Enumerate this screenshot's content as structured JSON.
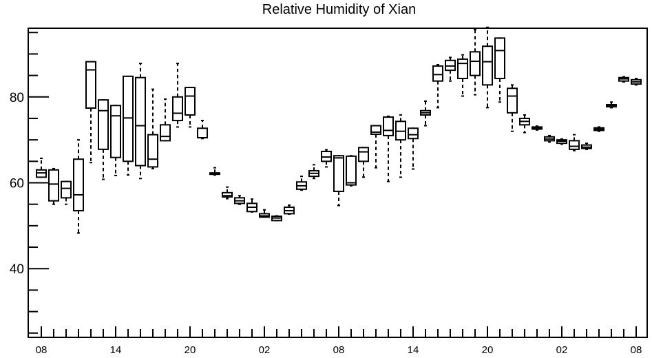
{
  "chart_data": {
    "type": "box",
    "title": "Relative Humidity of Xian",
    "xlabel": "",
    "ylabel": "",
    "ylim": [
      24,
      96
    ],
    "grid": false,
    "legend": "none",
    "y_ticks": [
      40,
      60,
      80
    ],
    "x_ticks": [
      {
        "label": "08",
        "hour": 0
      },
      {
        "label": "14",
        "hour": 6
      },
      {
        "label": "20",
        "hour": 12
      },
      {
        "label": "02",
        "hour": 18
      },
      {
        "label": "08",
        "hour": 24
      },
      {
        "label": "14",
        "hour": 30
      },
      {
        "label": "20",
        "hour": 36
      },
      {
        "label": "02",
        "hour": 42
      },
      {
        "label": "08",
        "hour": 48
      }
    ],
    "colors": {
      "stroke": "#000000",
      "background": "#ffffff"
    },
    "series": [
      {
        "hour": 0,
        "min": 61.3,
        "q1": 61.3,
        "median": 62.3,
        "q3": 63.0,
        "max": 65.7
      },
      {
        "hour": 1,
        "min": 55.0,
        "q1": 55.8,
        "median": 59.7,
        "q3": 63.0,
        "max": 63.3
      },
      {
        "hour": 2,
        "min": 55.0,
        "q1": 56.5,
        "median": 58.7,
        "q3": 60.3,
        "max": 60.3
      },
      {
        "hour": 3,
        "min": 48.3,
        "q1": 53.5,
        "median": 57.2,
        "q3": 65.5,
        "max": 70.0
      },
      {
        "hour": 4,
        "min": 64.7,
        "q1": 77.4,
        "median": 86.3,
        "q3": 88.2,
        "max": 88.2
      },
      {
        "hour": 5,
        "min": 60.8,
        "q1": 67.8,
        "median": 76.8,
        "q3": 79.3,
        "max": 79.3
      },
      {
        "hour": 6,
        "min": 61.7,
        "q1": 65.9,
        "median": 75.6,
        "q3": 78.0,
        "max": 78.0
      },
      {
        "hour": 7,
        "min": 61.8,
        "q1": 65.0,
        "median": 75.1,
        "q3": 84.8,
        "max": 84.8
      },
      {
        "hour": 8,
        "min": 61.0,
        "q1": 64.0,
        "median": 73.3,
        "q3": 84.5,
        "max": 87.8
      },
      {
        "hour": 9,
        "min": 63.3,
        "q1": 63.7,
        "median": 65.5,
        "q3": 71.2,
        "max": 81.8
      },
      {
        "hour": 10,
        "min": 69.8,
        "q1": 69.8,
        "median": 70.8,
        "q3": 73.5,
        "max": 79.5
      },
      {
        "hour": 11,
        "min": 73.0,
        "q1": 74.5,
        "median": 76.2,
        "q3": 80.0,
        "max": 87.8
      },
      {
        "hour": 12,
        "min": 73.0,
        "q1": 75.8,
        "median": 80.2,
        "q3": 82.2,
        "max": 82.2
      },
      {
        "hour": 13,
        "min": 70.3,
        "q1": 70.5,
        "median": 70.5,
        "q3": 72.7,
        "max": 74.5
      },
      {
        "hour": 14,
        "min": 61.8,
        "q1": 62.0,
        "median": 62.2,
        "q3": 62.3,
        "max": 63.5
      },
      {
        "hour": 15,
        "min": 56.3,
        "q1": 56.7,
        "median": 57.0,
        "q3": 57.7,
        "max": 59.0
      },
      {
        "hour": 16,
        "min": 55.0,
        "q1": 55.2,
        "median": 55.8,
        "q3": 56.5,
        "max": 57.0
      },
      {
        "hour": 17,
        "min": 53.2,
        "q1": 53.3,
        "median": 54.3,
        "q3": 55.2,
        "max": 56.2
      },
      {
        "hour": 18,
        "min": 52.0,
        "q1": 52.0,
        "median": 52.3,
        "q3": 52.8,
        "max": 53.7
      },
      {
        "hour": 19,
        "min": 51.2,
        "q1": 51.2,
        "median": 51.8,
        "q3": 52.2,
        "max": 52.3
      },
      {
        "hour": 20,
        "min": 52.7,
        "q1": 52.8,
        "median": 53.5,
        "q3": 54.3,
        "max": 54.8
      },
      {
        "hour": 21,
        "min": 58.3,
        "q1": 58.5,
        "median": 59.3,
        "q3": 60.2,
        "max": 61.5
      },
      {
        "hour": 22,
        "min": 61.0,
        "q1": 61.5,
        "median": 62.2,
        "q3": 62.8,
        "max": 64.2
      },
      {
        "hour": 23,
        "min": 63.7,
        "q1": 65.0,
        "median": 66.0,
        "q3": 67.3,
        "max": 67.7
      },
      {
        "hour": 24,
        "min": 54.7,
        "q1": 58.0,
        "median": 65.8,
        "q3": 66.3,
        "max": 66.3
      },
      {
        "hour": 25,
        "min": 59.3,
        "q1": 59.5,
        "median": 60.0,
        "q3": 66.2,
        "max": 66.3
      },
      {
        "hour": 26,
        "min": 61.3,
        "q1": 65.0,
        "median": 67.2,
        "q3": 68.2,
        "max": 68.2
      },
      {
        "hour": 27,
        "min": 63.5,
        "q1": 71.3,
        "median": 71.8,
        "q3": 73.3,
        "max": 73.3
      },
      {
        "hour": 28,
        "min": 60.3,
        "q1": 71.0,
        "median": 72.2,
        "q3": 75.3,
        "max": 75.5
      },
      {
        "hour": 29,
        "min": 61.3,
        "q1": 70.0,
        "median": 72.0,
        "q3": 74.3,
        "max": 75.8
      },
      {
        "hour": 30,
        "min": 63.2,
        "q1": 70.3,
        "median": 71.2,
        "q3": 72.7,
        "max": 72.7
      },
      {
        "hour": 31,
        "min": 73.3,
        "q1": 75.8,
        "median": 76.3,
        "q3": 76.8,
        "max": 79.0
      },
      {
        "hour": 32,
        "min": 77.5,
        "q1": 83.7,
        "median": 85.2,
        "q3": 87.2,
        "max": 87.5
      },
      {
        "hour": 33,
        "min": 83.7,
        "q1": 86.2,
        "median": 87.2,
        "q3": 88.5,
        "max": 89.2
      },
      {
        "hour": 34,
        "min": 80.2,
        "q1": 84.3,
        "median": 87.8,
        "q3": 88.8,
        "max": 89.8
      },
      {
        "hour": 35,
        "min": 80.5,
        "q1": 85.0,
        "median": 88.3,
        "q3": 90.5,
        "max": 95.7
      },
      {
        "hour": 36,
        "min": 77.5,
        "q1": 82.8,
        "median": 88.2,
        "q3": 91.8,
        "max": 96.2
      },
      {
        "hour": 37,
        "min": 78.8,
        "q1": 84.3,
        "median": 90.8,
        "q3": 93.7,
        "max": 93.7
      },
      {
        "hour": 38,
        "min": 72.0,
        "q1": 76.3,
        "median": 80.2,
        "q3": 82.0,
        "max": 82.8
      },
      {
        "hour": 39,
        "min": 71.7,
        "q1": 73.5,
        "median": 74.3,
        "q3": 75.0,
        "max": 75.8
      },
      {
        "hour": 40,
        "min": 72.3,
        "q1": 72.5,
        "median": 72.8,
        "q3": 73.0,
        "max": 73.2
      },
      {
        "hour": 41,
        "min": 69.5,
        "q1": 69.8,
        "median": 70.2,
        "q3": 70.7,
        "max": 71.0
      },
      {
        "hour": 42,
        "min": 69.0,
        "q1": 69.2,
        "median": 69.7,
        "q3": 70.0,
        "max": 70.2
      },
      {
        "hour": 43,
        "min": 67.5,
        "q1": 67.8,
        "median": 68.5,
        "q3": 69.8,
        "max": 71.2
      },
      {
        "hour": 44,
        "min": 67.8,
        "q1": 68.0,
        "median": 68.3,
        "q3": 68.8,
        "max": 69.2
      },
      {
        "hour": 45,
        "min": 72.0,
        "q1": 72.2,
        "median": 72.5,
        "q3": 72.8,
        "max": 73.0
      },
      {
        "hour": 46,
        "min": 77.5,
        "q1": 77.7,
        "median": 78.0,
        "q3": 78.2,
        "max": 78.8
      },
      {
        "hour": 47,
        "min": 83.5,
        "q1": 83.7,
        "median": 84.2,
        "q3": 84.5,
        "max": 84.7
      },
      {
        "hour": 48,
        "min": 82.8,
        "q1": 83.0,
        "median": 83.5,
        "q3": 84.0,
        "max": 84.3
      }
    ]
  }
}
